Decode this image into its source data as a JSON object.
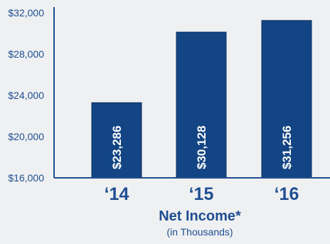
{
  "chart_data": {
    "type": "bar",
    "title": "Net Income*",
    "subtitle": "(in Thousands)",
    "categories": [
      "‘14",
      "‘15",
      "‘16"
    ],
    "values": [
      23286,
      30128,
      31256
    ],
    "data_labels": [
      "$23,286",
      "$30,128",
      "$31,256"
    ],
    "yticks": [
      "$16,000",
      "$20,000",
      "$24,000",
      "$28,000",
      "$32,000"
    ],
    "ytick_values": [
      16000,
      20000,
      24000,
      28000,
      32000
    ],
    "ylim": [
      16000,
      32000
    ],
    "grid": false,
    "legend": "none",
    "colors": {
      "bar": "#134584",
      "bar_edge": "#0b2f5e",
      "axis": "#1f4e91",
      "text": "#1f4e91",
      "label_text": "#ffffff"
    }
  }
}
